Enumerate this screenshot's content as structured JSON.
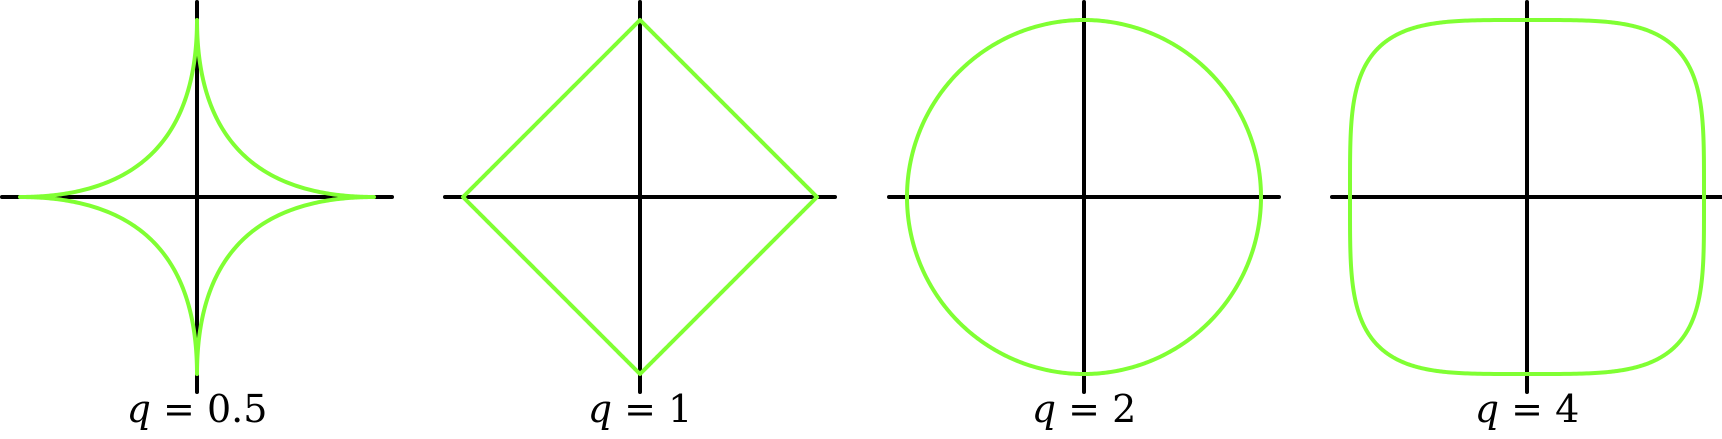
{
  "figure": {
    "curve_color": "#80ff33",
    "axis_color": "#000000",
    "panels": [
      {
        "q": 0.5,
        "label_var": "q",
        "label_rest": " = 0.5"
      },
      {
        "q": 1,
        "label_var": "q",
        "label_rest": " = 1"
      },
      {
        "q": 2,
        "label_var": "q",
        "label_rest": " = 2"
      },
      {
        "q": 4,
        "label_var": "q",
        "label_rest": " = 4"
      }
    ]
  }
}
